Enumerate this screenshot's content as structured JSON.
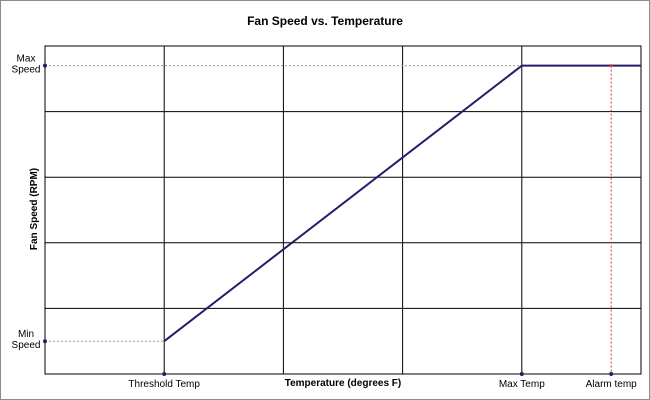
{
  "chart_data": {
    "type": "line",
    "title": "Fan Speed vs. Temperature",
    "xlabel": "Temperature (degrees F)",
    "ylabel": "Fan Speed (RPM)",
    "xlim": [
      0,
      5
    ],
    "ylim": [
      0,
      5
    ],
    "grid": true,
    "legend": "none",
    "series": [
      {
        "x": [
          1,
          4,
          5
        ],
        "y": [
          0.5,
          4.7,
          4.7
        ],
        "color": "#1f1f6b"
      }
    ],
    "x_markers": [
      {
        "label": "Threshold Temp",
        "x": 1,
        "guide": "none"
      },
      {
        "label": "Max Temp",
        "x": 4,
        "guide": "none"
      },
      {
        "label": "Alarm temp",
        "x": 4.75,
        "guide": "dotted-red"
      }
    ],
    "y_markers": [
      {
        "label_lines": [
          "Max",
          "Speed"
        ],
        "y": 4.7,
        "guide": "dotted-gray"
      },
      {
        "label_lines": [
          "Min",
          "Speed"
        ],
        "y": 0.5,
        "guide": "dotted-gray"
      }
    ],
    "colors": {
      "line": "#1f1f6b",
      "grid": "#000000",
      "alarm_guide": "#e03030",
      "speed_guide": "#9a9a9a",
      "marker_dot": "#1f1f6b"
    }
  }
}
